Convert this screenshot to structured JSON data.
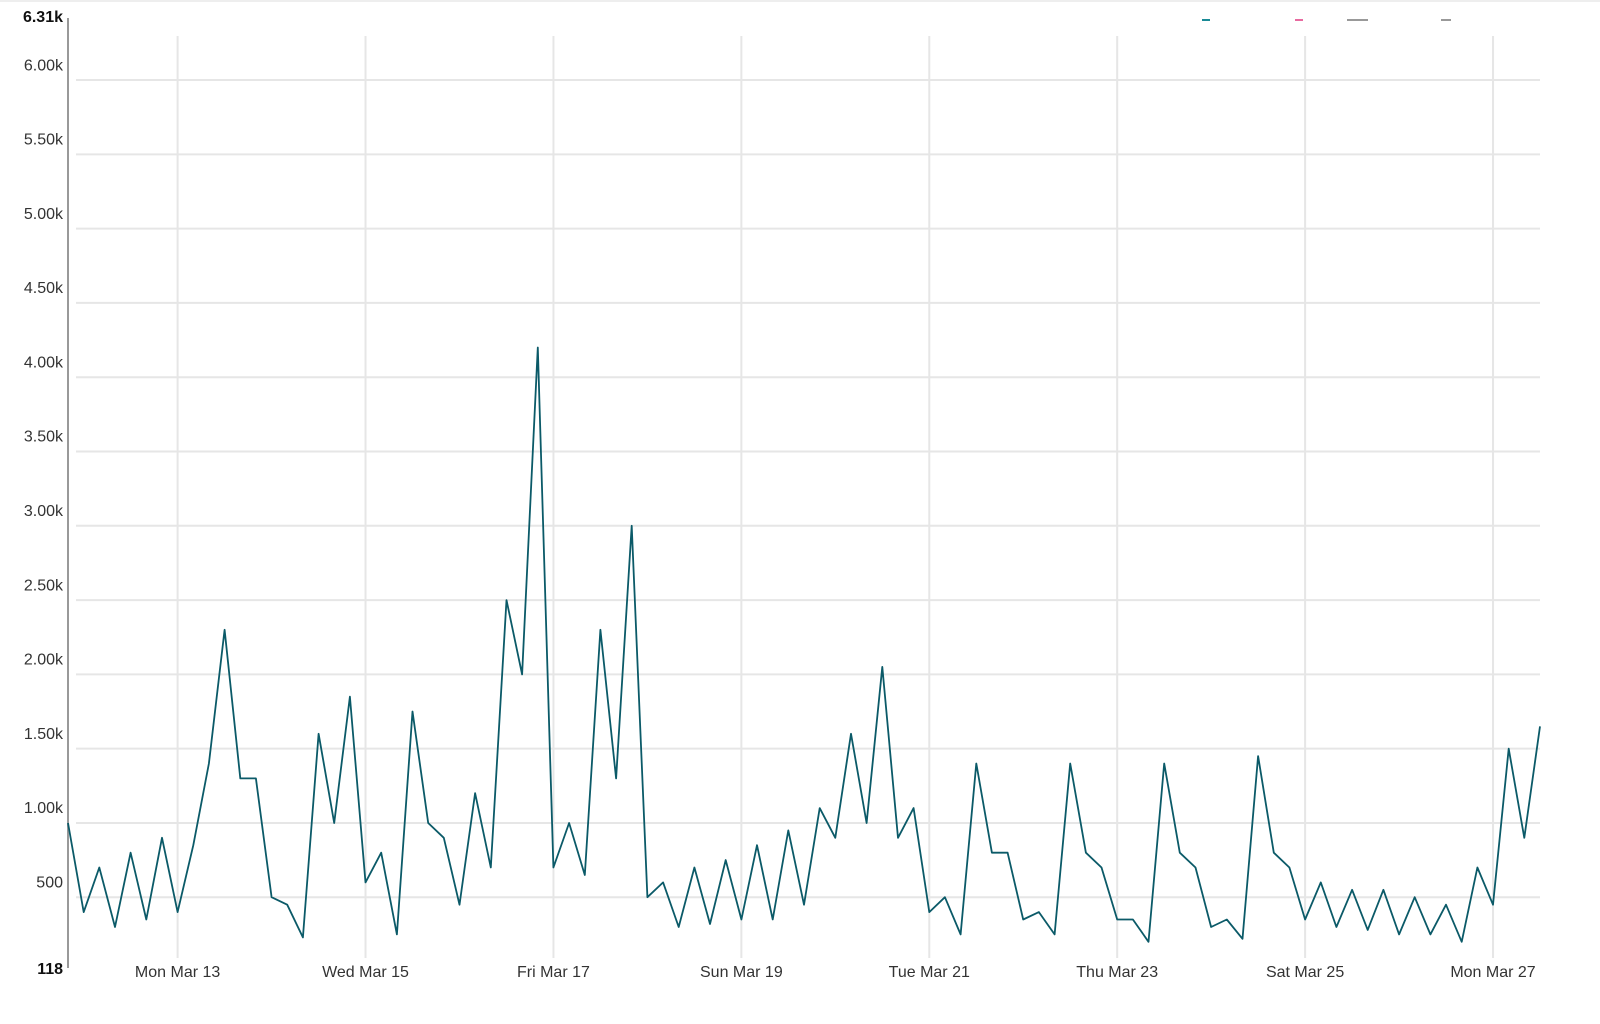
{
  "chart_data": {
    "type": "line",
    "categories": [
      null,
      null,
      null,
      null,
      null,
      null,
      null,
      "Mon Mar 13",
      null,
      null,
      null,
      null,
      null,
      null,
      null,
      null,
      null,
      null,
      null,
      "Wed Mar 15",
      null,
      null,
      null,
      null,
      null,
      null,
      null,
      null,
      null,
      null,
      null,
      "Fri Mar 17",
      null,
      null,
      null,
      null,
      null,
      null,
      null,
      null,
      null,
      null,
      null,
      "Sun Mar 19",
      null,
      null,
      null,
      null,
      null,
      null,
      null,
      null,
      null,
      null,
      null,
      "Tue Mar 21",
      null,
      null,
      null,
      null,
      null,
      null,
      null,
      null,
      null,
      null,
      null,
      "Thu Mar 23",
      null,
      null,
      null,
      null,
      null,
      null,
      null,
      null,
      null,
      null,
      null,
      "Sat Mar 25",
      null,
      null,
      null,
      null,
      null,
      null,
      null,
      null,
      null,
      null,
      null,
      "Mon Mar 27",
      null,
      null,
      null
    ],
    "values": [
      1000,
      400,
      700,
      300,
      800,
      350,
      900,
      400,
      850,
      1400,
      2300,
      1300,
      1300,
      500,
      450,
      230,
      1600,
      1000,
      1850,
      600,
      800,
      250,
      1750,
      1000,
      900,
      450,
      1200,
      700,
      2500,
      2000,
      4200,
      700,
      1000,
      650,
      2300,
      1300,
      3000,
      500,
      600,
      300,
      700,
      320,
      750,
      350,
      850,
      350,
      950,
      450,
      1100,
      900,
      1600,
      1000,
      2050,
      900,
      1100,
      400,
      500,
      250,
      1400,
      800,
      800,
      350,
      400,
      250,
      1400,
      800,
      700,
      350,
      350,
      200,
      1400,
      800,
      700,
      300,
      350,
      220,
      1450,
      800,
      700,
      350,
      600,
      300,
      550,
      280,
      550,
      250,
      500,
      250,
      450,
      200,
      700,
      450,
      1500,
      900,
      1650
    ],
    "color": "#0b5a68",
    "ylim": [
      118,
      6310
    ],
    "yticks": [
      118,
      500,
      {
        "value": 1000,
        "label": "1.00k"
      },
      {
        "value": 1500,
        "label": "1.50k"
      },
      {
        "value": 2000,
        "label": "2.00k"
      },
      {
        "value": 2500,
        "label": "2.50k"
      },
      {
        "value": 3000,
        "label": "3.00k"
      },
      {
        "value": 3500,
        "label": "3.50k"
      },
      {
        "value": 4000,
        "label": "4.00k"
      },
      {
        "value": 4500,
        "label": "4.50k"
      },
      {
        "value": 5000,
        "label": "5.00k"
      },
      {
        "value": 5500,
        "label": "5.50k"
      },
      {
        "value": 6000,
        "label": "6.00k"
      },
      {
        "value": 6310,
        "label": "6.31k"
      }
    ],
    "grid": true
  }
}
